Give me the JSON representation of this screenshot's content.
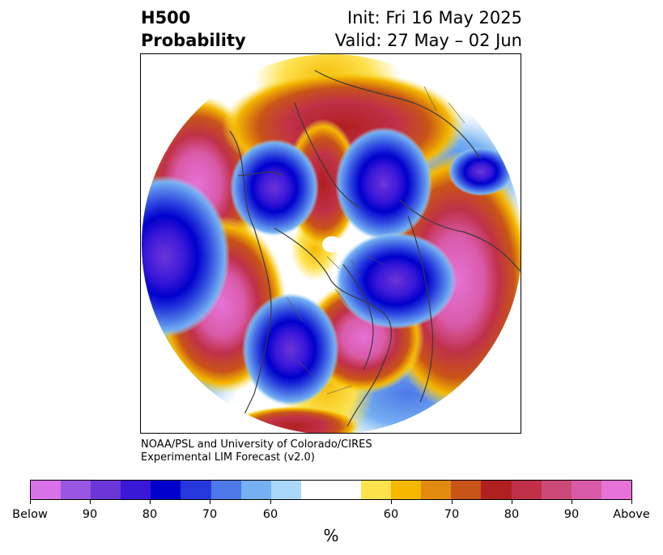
{
  "title": {
    "left_line1": "H500",
    "left_line2": "Probability",
    "right_line1": "Init: Fri 16 May 2025",
    "right_line2": "Valid: 27 May – 02 Jun"
  },
  "credit": {
    "line1": "NOAA/PSL and University of Colorado/CIRES",
    "line2": "Experimental LIM Forecast (v2.0)"
  },
  "colorbar": {
    "unit_label": "%",
    "colors": [
      "#d872e8",
      "#9a55e2",
      "#6b35d8",
      "#3b18d8",
      "#0000cc",
      "#2438dc",
      "#4d78e8",
      "#74b0f2",
      "#aad8fa",
      "#ffffff",
      "#ffffff",
      "#fde24e",
      "#f4b800",
      "#e28a10",
      "#c85418",
      "#b02020",
      "#c03048",
      "#cc4a78",
      "#d95aa8",
      "#e672d8"
    ],
    "tick_labels": [
      "Below",
      "90",
      "80",
      "70",
      "60",
      "60",
      "70",
      "80",
      "90",
      "Above"
    ]
  },
  "map": {
    "icon": "polar-stereographic-map",
    "projection": "north-polar-stereographic"
  }
}
